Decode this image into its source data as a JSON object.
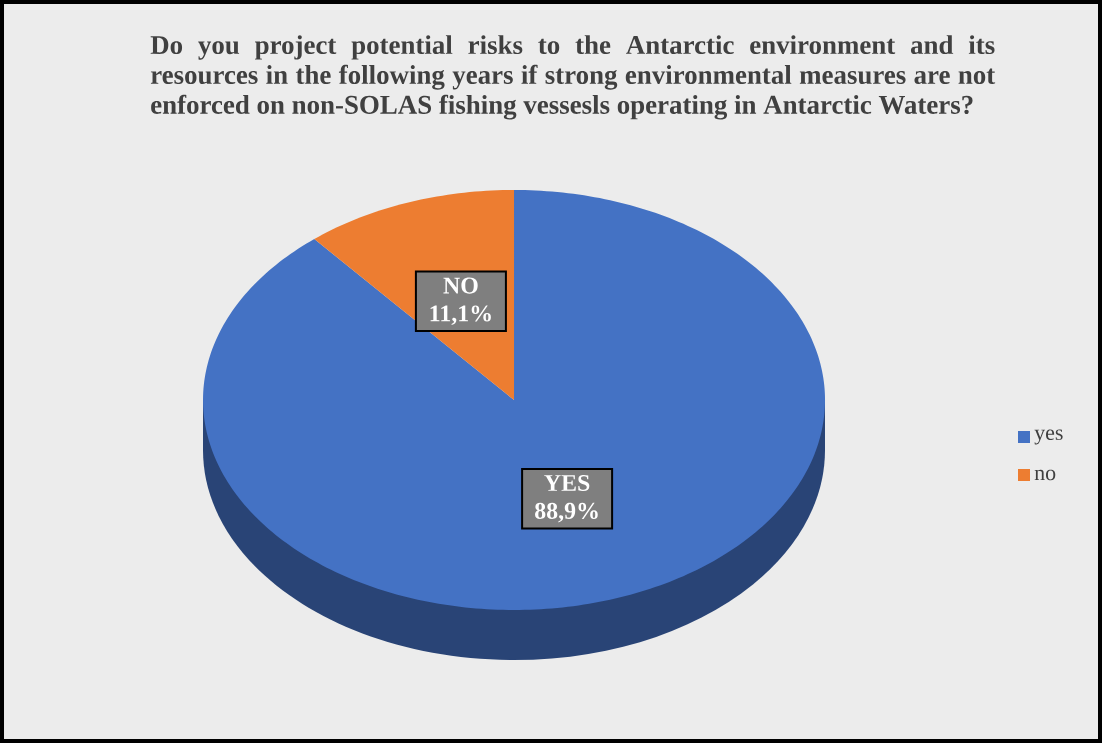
{
  "chart_data": {
    "type": "pie",
    "title": "Do you project potential risks to the Antarctic environment and its resources in the following years if strong environmental measures are not enforced on non-SOLAS fishing vessesls operating in Antarctic Waters?",
    "categories": [
      "yes",
      "no"
    ],
    "values": [
      88.9,
      11.1
    ],
    "colors": [
      "#4472c4",
      "#ed7d31"
    ],
    "value_labels": [
      "YES 88,9%",
      "NO 11,1%"
    ],
    "legend": "right"
  }
}
